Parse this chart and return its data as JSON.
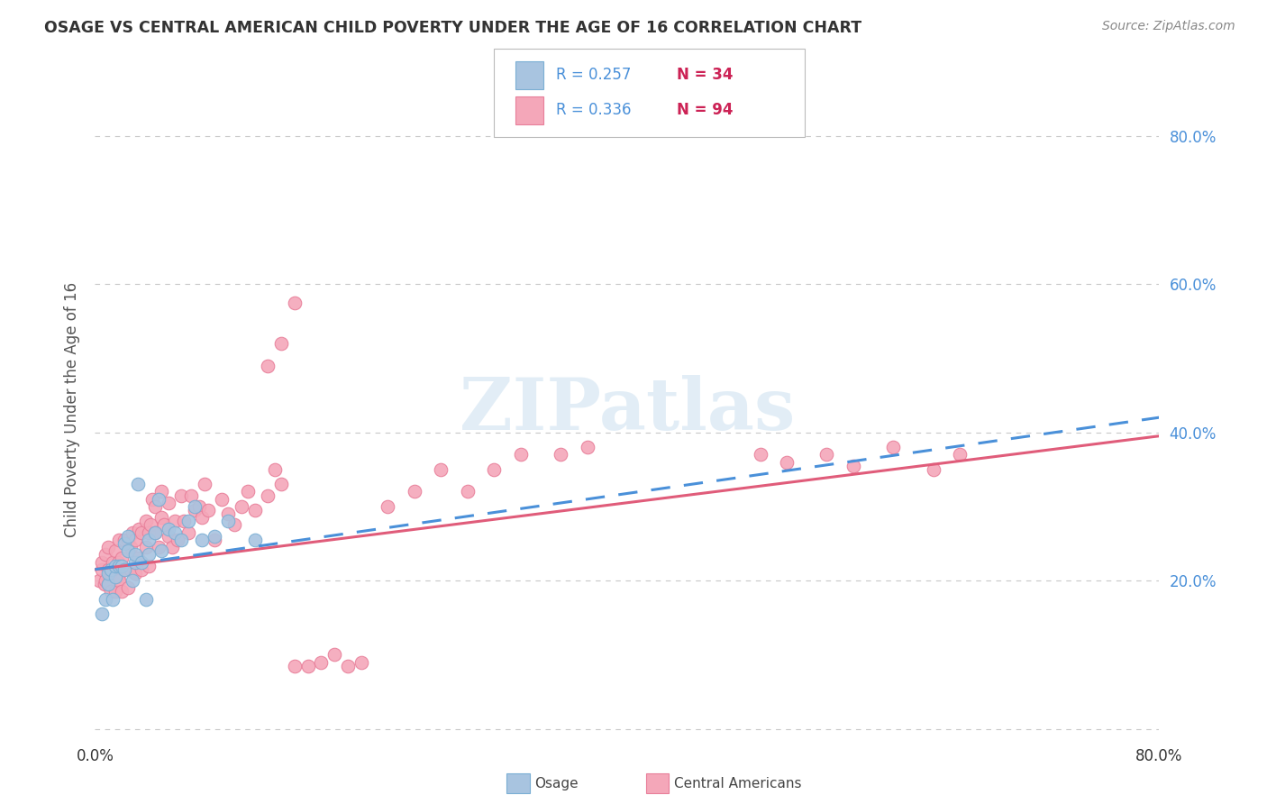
{
  "title": "OSAGE VS CENTRAL AMERICAN CHILD POVERTY UNDER THE AGE OF 16 CORRELATION CHART",
  "source": "Source: ZipAtlas.com",
  "ylabel": "Child Poverty Under the Age of 16",
  "xlim": [
    0.0,
    0.8
  ],
  "ylim": [
    -0.02,
    0.88
  ],
  "xtick_vals": [
    0.0,
    0.8
  ],
  "xtick_labels": [
    "0.0%",
    "80.0%"
  ],
  "ytick_values": [
    0.0,
    0.2,
    0.4,
    0.6,
    0.8
  ],
  "right_ytick_labels": [
    "20.0%",
    "40.0%",
    "60.0%",
    "80.0%"
  ],
  "right_ytick_values": [
    0.2,
    0.4,
    0.6,
    0.8
  ],
  "osage_color": "#a8c4e0",
  "central_color": "#f4a7b9",
  "osage_edge": "#7bafd4",
  "central_edge": "#e87f9a",
  "trend_osage_color": "#4a90d9",
  "trend_central_color": "#e05c7a",
  "legend_R_osage": "R = 0.257",
  "legend_N_osage": "N = 34",
  "legend_R_central": "R = 0.336",
  "legend_N_central": "N = 94",
  "watermark": "ZIPatlas",
  "background_color": "#ffffff",
  "grid_color": "#c8c8c8",
  "osage_x": [
    0.005,
    0.008,
    0.01,
    0.01,
    0.012,
    0.013,
    0.015,
    0.015,
    0.018,
    0.02,
    0.022,
    0.022,
    0.025,
    0.025,
    0.028,
    0.03,
    0.03,
    0.032,
    0.035,
    0.038,
    0.04,
    0.04,
    0.045,
    0.048,
    0.05,
    0.055,
    0.06,
    0.065,
    0.07,
    0.075,
    0.08,
    0.09,
    0.1,
    0.12
  ],
  "osage_y": [
    0.155,
    0.175,
    0.195,
    0.21,
    0.215,
    0.175,
    0.205,
    0.22,
    0.22,
    0.22,
    0.215,
    0.25,
    0.24,
    0.26,
    0.2,
    0.225,
    0.235,
    0.33,
    0.225,
    0.175,
    0.235,
    0.255,
    0.265,
    0.31,
    0.24,
    0.27,
    0.265,
    0.255,
    0.28,
    0.3,
    0.255,
    0.26,
    0.28,
    0.255
  ],
  "central_x": [
    0.003,
    0.005,
    0.005,
    0.007,
    0.008,
    0.008,
    0.01,
    0.01,
    0.01,
    0.012,
    0.012,
    0.013,
    0.015,
    0.015,
    0.015,
    0.017,
    0.017,
    0.018,
    0.018,
    0.02,
    0.02,
    0.022,
    0.022,
    0.025,
    0.025,
    0.027,
    0.027,
    0.028,
    0.03,
    0.03,
    0.032,
    0.033,
    0.035,
    0.035,
    0.038,
    0.038,
    0.04,
    0.04,
    0.042,
    0.043,
    0.045,
    0.045,
    0.048,
    0.05,
    0.05,
    0.052,
    0.055,
    0.055,
    0.058,
    0.06,
    0.062,
    0.065,
    0.067,
    0.07,
    0.072,
    0.075,
    0.078,
    0.08,
    0.082,
    0.085,
    0.09,
    0.095,
    0.1,
    0.105,
    0.11,
    0.115,
    0.12,
    0.13,
    0.135,
    0.14,
    0.15,
    0.16,
    0.17,
    0.18,
    0.19,
    0.2,
    0.22,
    0.24,
    0.26,
    0.28,
    0.3,
    0.32,
    0.35,
    0.37,
    0.13,
    0.14,
    0.15,
    0.5,
    0.52,
    0.55,
    0.57,
    0.6,
    0.63,
    0.65
  ],
  "central_y": [
    0.2,
    0.215,
    0.225,
    0.195,
    0.2,
    0.235,
    0.195,
    0.215,
    0.245,
    0.185,
    0.21,
    0.225,
    0.185,
    0.205,
    0.24,
    0.205,
    0.225,
    0.2,
    0.255,
    0.185,
    0.23,
    0.215,
    0.255,
    0.19,
    0.255,
    0.215,
    0.245,
    0.265,
    0.21,
    0.255,
    0.23,
    0.27,
    0.215,
    0.265,
    0.245,
    0.28,
    0.22,
    0.265,
    0.275,
    0.31,
    0.265,
    0.3,
    0.245,
    0.285,
    0.32,
    0.275,
    0.26,
    0.305,
    0.245,
    0.28,
    0.255,
    0.315,
    0.28,
    0.265,
    0.315,
    0.295,
    0.3,
    0.285,
    0.33,
    0.295,
    0.255,
    0.31,
    0.29,
    0.275,
    0.3,
    0.32,
    0.295,
    0.315,
    0.35,
    0.33,
    0.085,
    0.085,
    0.09,
    0.1,
    0.085,
    0.09,
    0.3,
    0.32,
    0.35,
    0.32,
    0.35,
    0.37,
    0.37,
    0.38,
    0.49,
    0.52,
    0.575,
    0.37,
    0.36,
    0.37,
    0.355,
    0.38,
    0.35,
    0.37
  ],
  "osage_trend_x0": 0.0,
  "osage_trend_x1": 0.8,
  "osage_trend_y0": 0.215,
  "osage_trend_y1": 0.42,
  "central_trend_x0": 0.0,
  "central_trend_x1": 0.8,
  "central_trend_y0": 0.215,
  "central_trend_y1": 0.395
}
